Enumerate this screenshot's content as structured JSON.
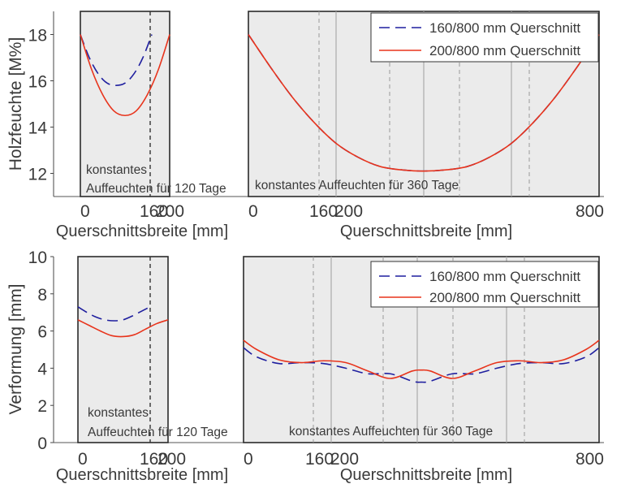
{
  "chart_data": [
    {
      "type": "line",
      "ylabel": "Holzfeuchte [M%]",
      "ylim": [
        11,
        19
      ],
      "yticks": [
        12,
        14,
        16,
        18
      ],
      "grid": false,
      "legend": {
        "placement": "top-right",
        "entries": [
          "160/800 mm Querschnitt",
          "200/800 mm Querschnitt"
        ]
      },
      "series_style": {
        "160/800 mm Querschnitt": {
          "color": "#1f1f9f",
          "dash": "dashed"
        },
        "200/800 mm Querschnitt": {
          "color": "#e8341c",
          "dash": "solid"
        }
      },
      "panels": [
        {
          "xlabel": "Querschnittsbreite [mm]",
          "xlim": [
            0,
            200
          ],
          "xticks": [
            "0",
            "160",
            "200"
          ],
          "annotation": [
            "konstantes",
            "Auffeuchten für 120 Tage"
          ],
          "series": [
            {
              "name": "160/800 mm Querschnitt",
              "x": [
                0,
                20,
                40,
                60,
                80,
                100,
                120,
                140,
                160
              ],
              "y": [
                18.0,
                17.0,
                16.3,
                15.9,
                15.8,
                15.9,
                16.3,
                17.0,
                18.0
              ]
            },
            {
              "name": "200/800 mm Querschnitt",
              "x": [
                0,
                25,
                50,
                75,
                100,
                125,
                150,
                175,
                200
              ],
              "y": [
                18.0,
                16.5,
                15.4,
                14.7,
                14.5,
                14.7,
                15.4,
                16.5,
                18.0
              ]
            }
          ]
        },
        {
          "xlabel": "Querschnittsbreite [mm]",
          "xlim": [
            0,
            800
          ],
          "xticks": [
            "0",
            "160",
            "200",
            "800"
          ],
          "annotation": [
            "konstantes Auffeuchten für 360 Tage"
          ],
          "series": [
            {
              "name": "160/800 mm Querschnitt",
              "x": [
                0,
                50,
                100,
                150,
                200,
                250,
                300,
                350,
                400,
                450,
                500,
                550,
                600,
                650,
                700,
                750,
                800
              ],
              "y": [
                18.0,
                16.6,
                15.3,
                14.2,
                13.3,
                12.7,
                12.3,
                12.15,
                12.1,
                12.15,
                12.3,
                12.7,
                13.3,
                14.2,
                15.3,
                16.6,
                18.0
              ]
            },
            {
              "name": "200/800 mm Querschnitt",
              "x": [
                0,
                50,
                100,
                150,
                200,
                250,
                300,
                350,
                400,
                450,
                500,
                550,
                600,
                650,
                700,
                750,
                800
              ],
              "y": [
                18.0,
                16.6,
                15.3,
                14.2,
                13.3,
                12.7,
                12.3,
                12.15,
                12.1,
                12.15,
                12.3,
                12.7,
                13.3,
                14.2,
                15.3,
                16.6,
                18.0
              ]
            }
          ]
        }
      ]
    },
    {
      "type": "line",
      "ylabel": "Verformung [mm]",
      "ylim": [
        0,
        10
      ],
      "yticks": [
        0,
        2,
        4,
        6,
        8,
        10
      ],
      "grid": false,
      "legend": {
        "placement": "top-right",
        "entries": [
          "160/800 mm Querschnitt",
          "200/800 mm Querschnitt"
        ]
      },
      "series_style": {
        "160/800 mm Querschnitt": {
          "color": "#1f1f9f",
          "dash": "dashed"
        },
        "200/800 mm Querschnitt": {
          "color": "#e8341c",
          "dash": "solid"
        }
      },
      "panels": [
        {
          "xlabel": "Querschnittsbreite [mm]",
          "xlim": [
            0,
            200
          ],
          "xticks": [
            "0",
            "160",
            "200"
          ],
          "annotation": [
            "konstantes",
            "Auffeuchten für 120 Tage"
          ],
          "series": [
            {
              "name": "160/800 mm Querschnitt",
              "x": [
                0,
                20,
                40,
                60,
                80,
                100,
                120,
                140,
                160
              ],
              "y": [
                7.3,
                7.0,
                6.75,
                6.6,
                6.55,
                6.6,
                6.8,
                7.05,
                7.3
              ]
            },
            {
              "name": "200/800 mm Querschnitt",
              "x": [
                0,
                25,
                50,
                75,
                100,
                125,
                150,
                175,
                200
              ],
              "y": [
                6.6,
                6.3,
                6.0,
                5.75,
                5.7,
                5.8,
                6.1,
                6.4,
                6.6
              ]
            }
          ]
        },
        {
          "xlabel": "Querschnittsbreite [mm]",
          "xlim": [
            0,
            800
          ],
          "xticks": [
            "0",
            "160",
            "200",
            "800"
          ],
          "annotation": [
            "konstantes Auffeuchten für 360 Tage"
          ],
          "series": [
            {
              "name": "160/800 mm Querschnitt",
              "x": [
                0,
                30,
                80,
                130,
                180,
                230,
                280,
                330,
                380,
                400,
                420,
                470,
                520,
                570,
                620,
                670,
                720,
                770,
                800
              ],
              "y": [
                5.1,
                4.6,
                4.25,
                4.3,
                4.25,
                4.0,
                3.7,
                3.7,
                3.3,
                3.25,
                3.3,
                3.7,
                3.7,
                4.0,
                4.25,
                4.3,
                4.25,
                4.6,
                5.1
              ]
            },
            {
              "name": "200/800 mm Querschnitt",
              "x": [
                0,
                30,
                80,
                130,
                180,
                230,
                280,
                330,
                380,
                400,
                420,
                470,
                520,
                570,
                620,
                670,
                720,
                770,
                800
              ],
              "y": [
                5.5,
                5.0,
                4.45,
                4.3,
                4.4,
                4.3,
                3.85,
                3.45,
                3.85,
                3.9,
                3.85,
                3.45,
                3.85,
                4.3,
                4.4,
                4.3,
                4.45,
                5.0,
                5.5
              ]
            }
          ]
        }
      ]
    }
  ]
}
